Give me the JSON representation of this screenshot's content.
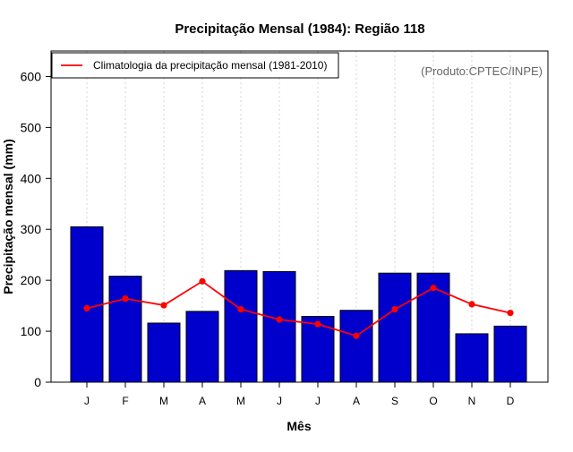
{
  "chart_data": {
    "type": "bar",
    "title": "Precipitação Mensal (1984): Região 118",
    "xlabel": "Mês",
    "ylabel": "Precipitação mensal (mm)",
    "ylim": [
      0,
      650
    ],
    "yticks": [
      0,
      100,
      200,
      300,
      400,
      500,
      600
    ],
    "grid": "vertical dotted",
    "categories": [
      "J",
      "F",
      "M",
      "A",
      "M",
      "J",
      "J",
      "A",
      "S",
      "O",
      "N",
      "D"
    ],
    "series": [
      {
        "name": "Precipitação mensal (1984)",
        "kind": "bar",
        "color": "#0000cc",
        "values": [
          305,
          208,
          116,
          139,
          219,
          217,
          129,
          141,
          214,
          214,
          95,
          110
        ]
      },
      {
        "name": "Climatologia da precipitação mensal (1981-2010)",
        "kind": "line",
        "color": "#ff0000",
        "values": [
          145,
          164,
          151,
          198,
          143,
          123,
          114,
          91,
          143,
          185,
          153,
          136
        ]
      }
    ],
    "legend": {
      "position": "top-left",
      "label": "Climatologia da precipitação mensal (1981-2010)"
    },
    "annotation": "(Produto:CPTEC/INPE)"
  }
}
